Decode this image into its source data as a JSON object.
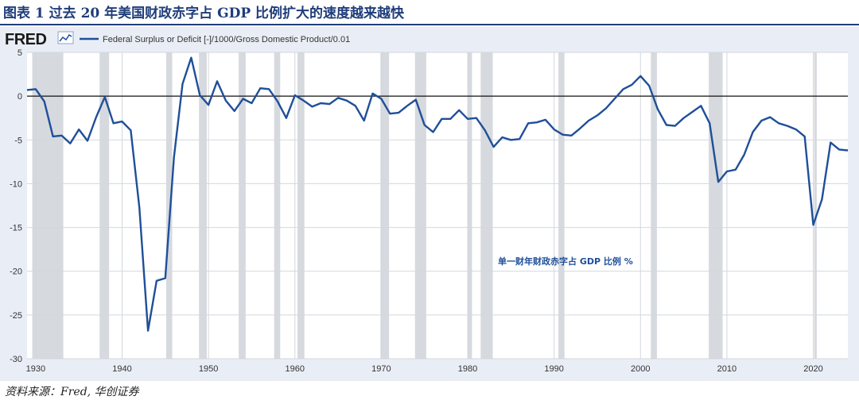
{
  "figure": {
    "title": "图表 1 过去 20 年美国财政赤字占 GDP 比例扩大的速度越来越快",
    "source": "资料来源：Fred, 华创证券"
  },
  "fred": {
    "logo_text": "FRED",
    "logo_icon": "line-chart-icon",
    "series_label": "Federal Surplus or Deficit [-]/1000/Gross Domestic Product/0.01"
  },
  "chart_data": {
    "type": "line",
    "title": "",
    "xlabel": "",
    "ylabel": "",
    "annotation": "单一财年财政赤字占 GDP 比例 %",
    "xlim": [
      1929,
      2024
    ],
    "ylim": [
      -30,
      5
    ],
    "x_ticks": [
      1930,
      1940,
      1950,
      1960,
      1970,
      1980,
      1990,
      2000,
      2010,
      2020
    ],
    "y_ticks": [
      5,
      0,
      -5,
      -10,
      -15,
      -20,
      -25,
      -30
    ],
    "grid": true,
    "line_color": "#1f4f99",
    "recession_color": "#d6d9de",
    "recessions": [
      [
        1929.6,
        1933.2
      ],
      [
        1937.4,
        1938.5
      ],
      [
        1945.1,
        1945.8
      ],
      [
        1948.9,
        1949.8
      ],
      [
        1953.5,
        1954.3
      ],
      [
        1957.6,
        1958.3
      ],
      [
        1960.3,
        1961.1
      ],
      [
        1969.9,
        1970.9
      ],
      [
        1973.9,
        1975.2
      ],
      [
        1980.0,
        1980.5
      ],
      [
        1981.5,
        1982.9
      ],
      [
        1990.5,
        1991.2
      ],
      [
        2001.2,
        2001.9
      ],
      [
        2007.9,
        2009.5
      ],
      [
        2020.1,
        2020.4
      ]
    ],
    "series": [
      {
        "name": "Federal Surplus or Deficit [-]/1000/Gross Domestic Product/0.01",
        "x": [
          1929,
          1930,
          1931,
          1932,
          1933,
          1934,
          1935,
          1936,
          1937,
          1938,
          1939,
          1940,
          1941,
          1942,
          1943,
          1944,
          1945,
          1946,
          1947,
          1948,
          1949,
          1950,
          1951,
          1952,
          1953,
          1954,
          1955,
          1956,
          1957,
          1958,
          1959,
          1960,
          1961,
          1962,
          1963,
          1964,
          1965,
          1966,
          1967,
          1968,
          1969,
          1970,
          1971,
          1972,
          1973,
          1974,
          1975,
          1976,
          1977,
          1978,
          1979,
          1980,
          1981,
          1982,
          1983,
          1984,
          1985,
          1986,
          1987,
          1988,
          1989,
          1990,
          1991,
          1992,
          1993,
          1994,
          1995,
          1996,
          1997,
          1998,
          1999,
          2000,
          2001,
          2002,
          2003,
          2004,
          2005,
          2006,
          2007,
          2008,
          2009,
          2010,
          2011,
          2012,
          2013,
          2014,
          2015,
          2016,
          2017,
          2018,
          2019,
          2020,
          2021,
          2022,
          2023,
          2024
        ],
        "values": [
          0.7,
          0.8,
          -0.6,
          -4.6,
          -4.5,
          -5.4,
          -3.8,
          -5.1,
          -2.4,
          -0.1,
          -3.1,
          -2.9,
          -3.9,
          -12.7,
          -26.8,
          -21.1,
          -20.8,
          -7.0,
          1.4,
          4.4,
          0.1,
          -1.0,
          1.7,
          -0.5,
          -1.7,
          -0.3,
          -0.8,
          0.9,
          0.8,
          -0.6,
          -2.5,
          0.1,
          -0.5,
          -1.2,
          -0.8,
          -0.9,
          -0.2,
          -0.5,
          -1.1,
          -2.8,
          0.3,
          -0.3,
          -2.0,
          -1.9,
          -1.1,
          -0.4,
          -3.3,
          -4.1,
          -2.6,
          -2.6,
          -1.6,
          -2.6,
          -2.5,
          -3.9,
          -5.8,
          -4.7,
          -5.0,
          -4.9,
          -3.1,
          -3.0,
          -2.7,
          -3.8,
          -4.4,
          -4.5,
          -3.7,
          -2.8,
          -2.2,
          -1.4,
          -0.3,
          0.8,
          1.3,
          2.3,
          1.2,
          -1.5,
          -3.3,
          -3.4,
          -2.5,
          -1.8,
          -1.1,
          -3.1,
          -9.8,
          -8.6,
          -8.4,
          -6.7,
          -4.1,
          -2.8,
          -2.4,
          -3.1,
          -3.4,
          -3.8,
          -4.6,
          -14.7,
          -11.8,
          -5.3,
          -6.1,
          -6.2
        ]
      }
    ]
  }
}
